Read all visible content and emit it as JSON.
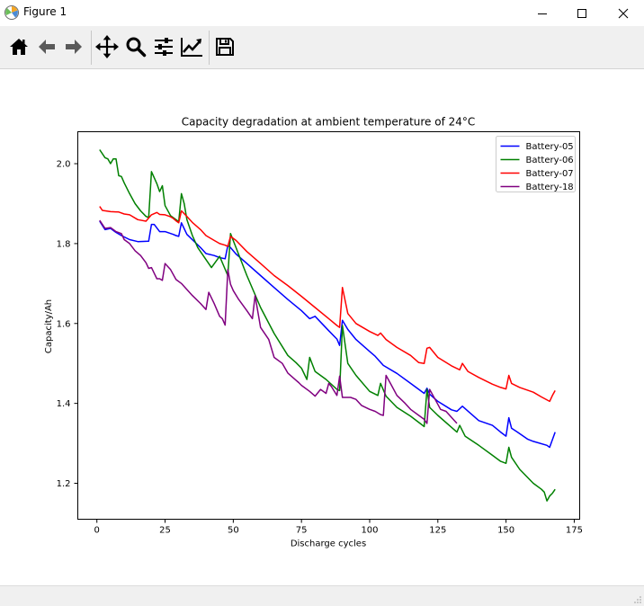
{
  "window": {
    "title": "Figure 1"
  },
  "toolbar": {
    "buttons": [
      "home-icon",
      "back-icon",
      "forward-icon",
      "pan-icon",
      "zoom-icon",
      "configure-subplots-icon",
      "edit-axis-icon",
      "save-icon"
    ]
  },
  "colors": {
    "battery05": "#0000ff",
    "battery06": "#008000",
    "battery07": "#ff0000",
    "battery18": "#800080"
  },
  "chart_data": {
    "type": "line",
    "title": "Capacity degradation at ambient temperature of 24°C",
    "xlabel": "Discharge cycles",
    "ylabel": "Capacity/Ah",
    "xlim": [
      -7,
      177
    ],
    "ylim": [
      1.11,
      2.08
    ],
    "xticks": [
      0,
      25,
      50,
      75,
      100,
      125,
      150,
      175
    ],
    "yticks": [
      1.2,
      1.4,
      1.6,
      1.8,
      2.0
    ],
    "x_tick_labels": [
      "0",
      "25",
      "50",
      "75",
      "100",
      "125",
      "150",
      "175"
    ],
    "y_tick_labels": [
      "1.2",
      "1.4",
      "1.6",
      "1.8",
      "2.0"
    ],
    "legend_position": "top-right",
    "grid": false,
    "series": [
      {
        "name": "Battery-05",
        "color": "#0000ff",
        "x": [
          1,
          3,
          5,
          7,
          9,
          12,
          15,
          19,
          20,
          21,
          23,
          25,
          28,
          29,
          30,
          31,
          33,
          38,
          40,
          43,
          45,
          47,
          48,
          49,
          51,
          55,
          60,
          65,
          70,
          75,
          78,
          80,
          85,
          88,
          89,
          90,
          92,
          95,
          100,
          102,
          105,
          110,
          115,
          120,
          121,
          122,
          125,
          130,
          132,
          134,
          137,
          140,
          145,
          148,
          150,
          151,
          152,
          154,
          158,
          160,
          165,
          166,
          168
        ],
        "y": [
          1.856,
          1.835,
          1.838,
          1.828,
          1.82,
          1.81,
          1.805,
          1.806,
          1.848,
          1.848,
          1.83,
          1.83,
          1.823,
          1.82,
          1.818,
          1.852,
          1.823,
          1.79,
          1.775,
          1.77,
          1.765,
          1.762,
          1.795,
          1.79,
          1.774,
          1.75,
          1.72,
          1.69,
          1.66,
          1.632,
          1.612,
          1.618,
          1.582,
          1.561,
          1.545,
          1.608,
          1.585,
          1.56,
          1.53,
          1.518,
          1.495,
          1.475,
          1.45,
          1.425,
          1.438,
          1.423,
          1.405,
          1.384,
          1.38,
          1.393,
          1.375,
          1.357,
          1.345,
          1.328,
          1.318,
          1.364,
          1.338,
          1.329,
          1.31,
          1.305,
          1.295,
          1.29,
          1.328
        ]
      },
      {
        "name": "Battery-06",
        "color": "#008000",
        "x": [
          1,
          3,
          4,
          5,
          6,
          7,
          8,
          9,
          10,
          12,
          14,
          16,
          18,
          19,
          20,
          21,
          22,
          23,
          24,
          25,
          27,
          30,
          31,
          32,
          33,
          35,
          37,
          40,
          42,
          45,
          48,
          49,
          51,
          55,
          60,
          65,
          70,
          73,
          75,
          77,
          78,
          80,
          84,
          88,
          89,
          90,
          92,
          95,
          100,
          103,
          104,
          106,
          110,
          115,
          120,
          121,
          122,
          125,
          130,
          132,
          133,
          135,
          140,
          145,
          148,
          150,
          151,
          152,
          155,
          160,
          163,
          164,
          165,
          166,
          167,
          168
        ],
        "y": [
          2.035,
          2.015,
          2.012,
          2.0,
          2.012,
          2.012,
          1.97,
          1.968,
          1.952,
          1.925,
          1.9,
          1.882,
          1.868,
          1.865,
          1.98,
          1.965,
          1.95,
          1.93,
          1.945,
          1.895,
          1.87,
          1.855,
          1.925,
          1.9,
          1.86,
          1.82,
          1.79,
          1.76,
          1.74,
          1.768,
          1.72,
          1.825,
          1.79,
          1.72,
          1.64,
          1.575,
          1.52,
          1.502,
          1.488,
          1.46,
          1.515,
          1.48,
          1.46,
          1.435,
          1.432,
          1.595,
          1.5,
          1.47,
          1.43,
          1.42,
          1.45,
          1.418,
          1.39,
          1.368,
          1.342,
          1.435,
          1.39,
          1.37,
          1.34,
          1.328,
          1.345,
          1.318,
          1.295,
          1.27,
          1.255,
          1.25,
          1.29,
          1.265,
          1.235,
          1.2,
          1.185,
          1.178,
          1.156,
          1.168,
          1.175,
          1.185
        ]
      },
      {
        "name": "Battery-07",
        "color": "#ff0000",
        "x": [
          1,
          2,
          5,
          8,
          10,
          12,
          15,
          18,
          20,
          22,
          23,
          25,
          27,
          28,
          29,
          30,
          31,
          33,
          35,
          38,
          40,
          43,
          45,
          47,
          48,
          49,
          51,
          55,
          60,
          65,
          70,
          75,
          80,
          85,
          88,
          89,
          90,
          92,
          95,
          100,
          103,
          104,
          106,
          110,
          115,
          118,
          120,
          121,
          122,
          125,
          130,
          133,
          134,
          136,
          140,
          145,
          148,
          150,
          151,
          152,
          155,
          160,
          163,
          166,
          167,
          168
        ],
        "y": [
          1.893,
          1.883,
          1.88,
          1.879,
          1.874,
          1.872,
          1.86,
          1.856,
          1.872,
          1.878,
          1.873,
          1.872,
          1.867,
          1.863,
          1.857,
          1.852,
          1.882,
          1.868,
          1.853,
          1.835,
          1.82,
          1.808,
          1.8,
          1.796,
          1.793,
          1.818,
          1.808,
          1.78,
          1.75,
          1.72,
          1.695,
          1.668,
          1.64,
          1.612,
          1.595,
          1.59,
          1.69,
          1.625,
          1.6,
          1.58,
          1.57,
          1.576,
          1.56,
          1.54,
          1.52,
          1.502,
          1.5,
          1.538,
          1.54,
          1.515,
          1.494,
          1.484,
          1.5,
          1.48,
          1.465,
          1.448,
          1.44,
          1.436,
          1.47,
          1.45,
          1.44,
          1.428,
          1.416,
          1.405,
          1.42,
          1.432
        ]
      },
      {
        "name": "Battery-18",
        "color": "#800080",
        "x": [
          1,
          2,
          3,
          5,
          7,
          9,
          10,
          12,
          14,
          16,
          18,
          19,
          20,
          21,
          22,
          23,
          24,
          25,
          27,
          29,
          31,
          33,
          35,
          38,
          40,
          41,
          43,
          45,
          46,
          47,
          48,
          49,
          50,
          52,
          55,
          57,
          58,
          60,
          63,
          65,
          68,
          70,
          73,
          74,
          75,
          78,
          80,
          82,
          84,
          85,
          86,
          88,
          89,
          90,
          93,
          95,
          97,
          100,
          102,
          104,
          105,
          106,
          108,
          110,
          113,
          115,
          118,
          120,
          121,
          122,
          124,
          126,
          128,
          130,
          132
        ],
        "y": [
          1.858,
          1.848,
          1.838,
          1.84,
          1.83,
          1.825,
          1.81,
          1.8,
          1.782,
          1.77,
          1.752,
          1.738,
          1.74,
          1.726,
          1.712,
          1.712,
          1.708,
          1.75,
          1.735,
          1.71,
          1.7,
          1.685,
          1.67,
          1.65,
          1.635,
          1.678,
          1.65,
          1.618,
          1.612,
          1.596,
          1.735,
          1.698,
          1.682,
          1.66,
          1.632,
          1.612,
          1.67,
          1.59,
          1.56,
          1.515,
          1.5,
          1.476,
          1.458,
          1.452,
          1.445,
          1.43,
          1.418,
          1.435,
          1.425,
          1.45,
          1.442,
          1.42,
          1.468,
          1.415,
          1.415,
          1.41,
          1.395,
          1.385,
          1.38,
          1.372,
          1.37,
          1.47,
          1.445,
          1.42,
          1.4,
          1.385,
          1.37,
          1.36,
          1.35,
          1.435,
          1.41,
          1.385,
          1.38,
          1.365,
          1.35
        ]
      }
    ]
  }
}
